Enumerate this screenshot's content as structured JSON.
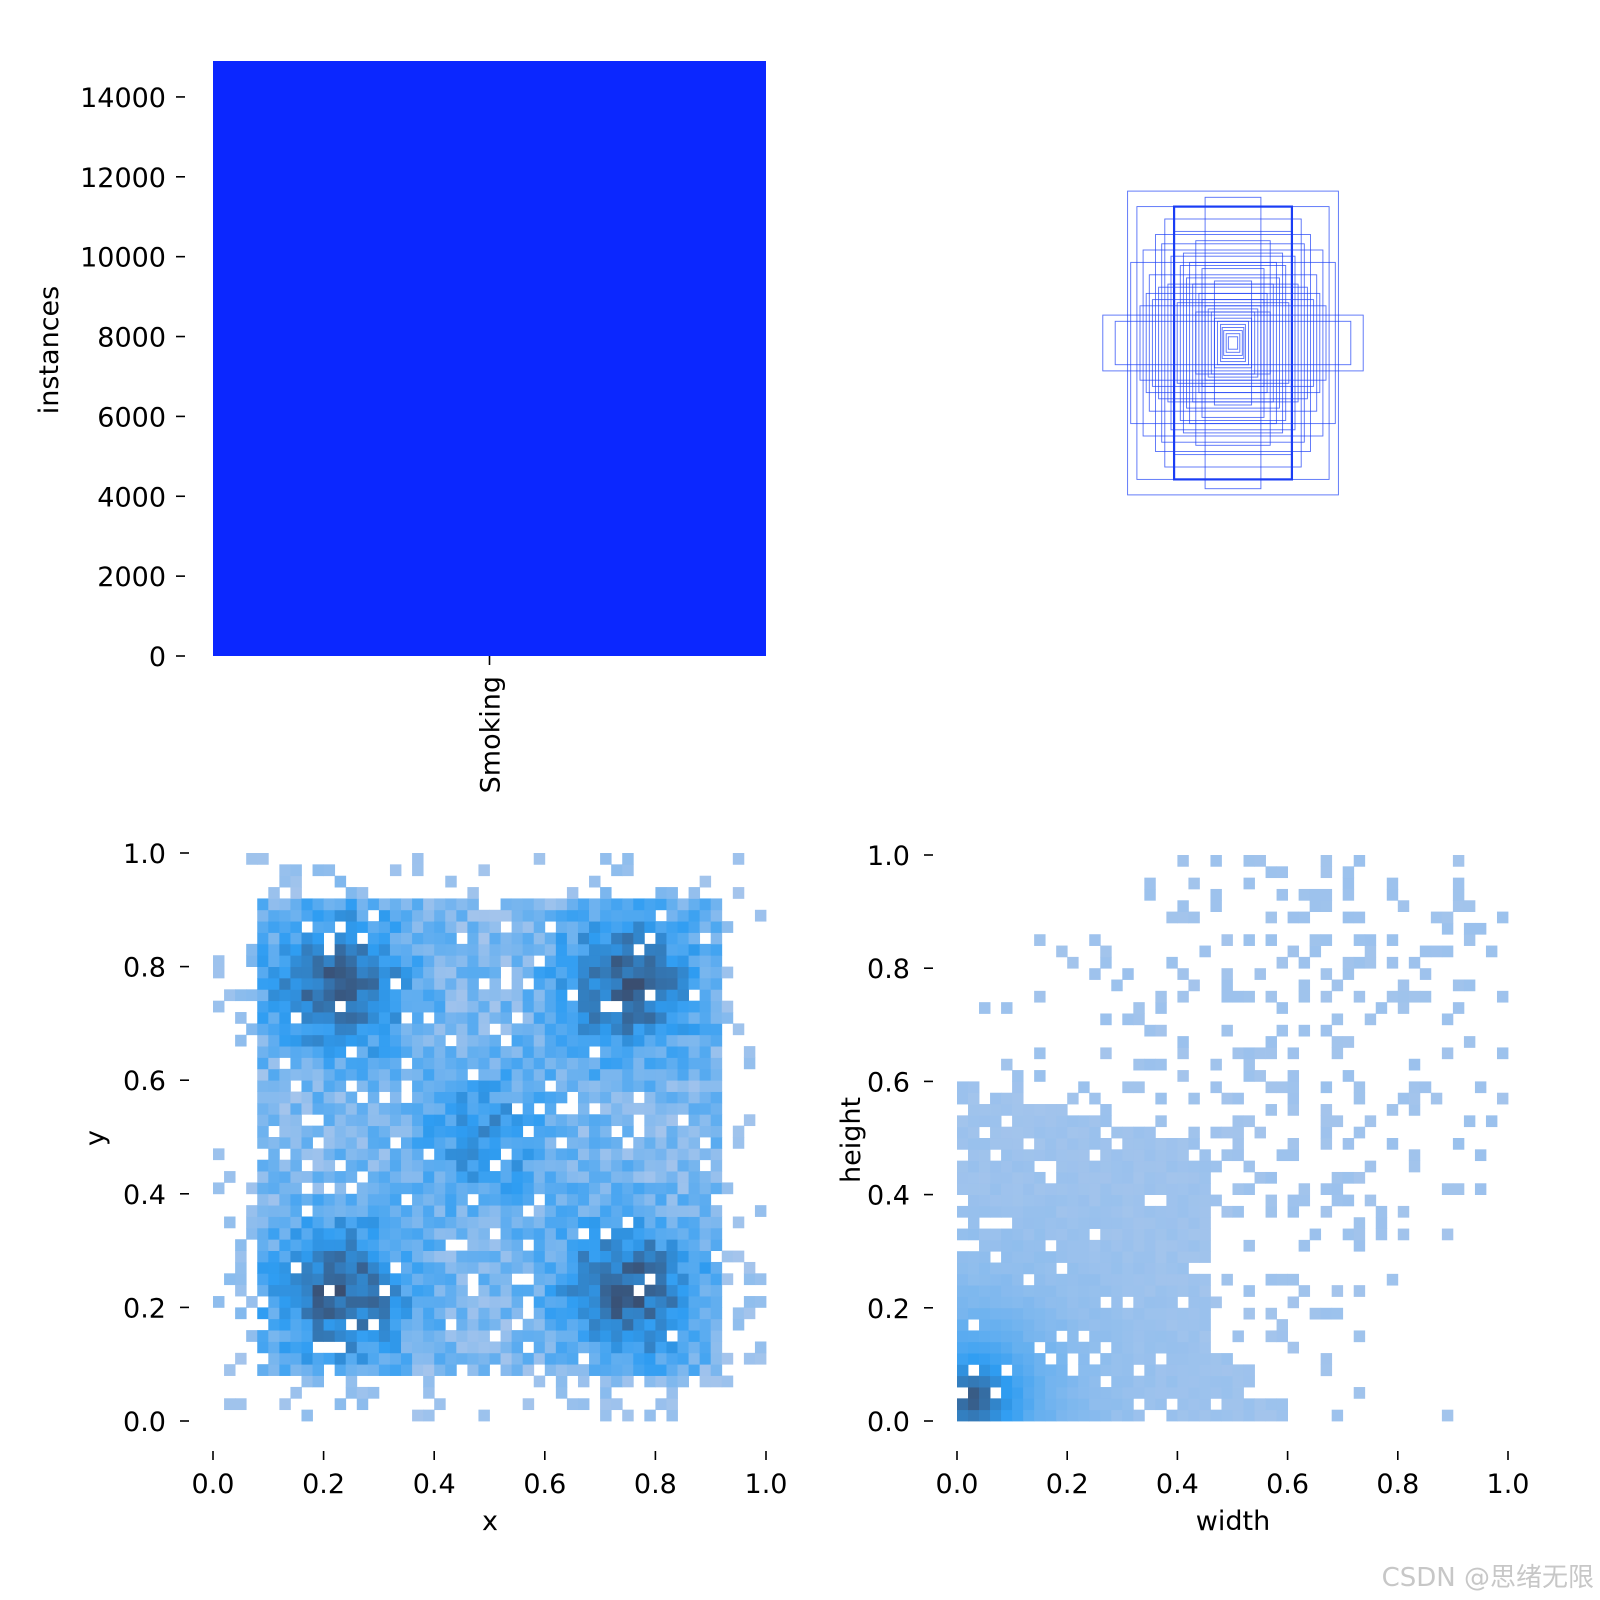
{
  "watermark": "CSDN @思绪无限",
  "colors": {
    "bar": "#0b27ff",
    "box_stroke": "#1a3df5",
    "hist_light": "#a9c6ec",
    "hist_mid": "#2f9df2",
    "hist_dark": "#3a4b6b"
  },
  "chart_data": [
    {
      "type": "bar",
      "categories": [
        "Smoking"
      ],
      "values": [
        14900
      ],
      "xlabel": "",
      "ylabel": "instances",
      "ylim": [
        0,
        14900
      ],
      "yticks": [
        "0",
        "2000",
        "4000",
        "6000",
        "8000",
        "10000",
        "12000",
        "14000"
      ],
      "grid": false
    },
    {
      "type": "other",
      "description": "",
      "boxes_wh": [
        [
          0.34,
          0.49
        ],
        [
          0.31,
          0.44
        ],
        [
          0.25,
          0.35
        ],
        [
          0.23,
          0.32
        ],
        [
          0.2,
          0.28
        ],
        [
          0.17,
          0.25
        ],
        [
          0.15,
          0.21
        ],
        [
          0.13,
          0.19
        ],
        [
          0.11,
          0.16
        ],
        [
          0.1,
          0.14
        ],
        [
          0.09,
          0.12
        ],
        [
          0.08,
          0.11
        ],
        [
          0.07,
          0.1
        ],
        [
          0.06,
          0.08
        ],
        [
          0.05,
          0.07
        ],
        [
          0.04,
          0.06
        ],
        [
          0.035,
          0.05
        ],
        [
          0.03,
          0.04
        ],
        [
          0.022,
          0.03
        ],
        [
          0.015,
          0.02
        ],
        [
          0.42,
          0.09
        ],
        [
          0.38,
          0.07
        ],
        [
          0.28,
          0.16
        ],
        [
          0.26,
          0.14
        ],
        [
          0.21,
          0.19
        ],
        [
          0.19,
          0.36
        ],
        [
          0.12,
          0.33
        ],
        [
          0.09,
          0.47
        ],
        [
          0.29,
          0.3
        ],
        [
          0.22,
          0.4
        ],
        [
          0.16,
          0.29
        ],
        [
          0.14,
          0.26
        ],
        [
          0.27,
          0.22
        ],
        [
          0.12,
          0.1
        ],
        [
          0.06,
          0.2
        ],
        [
          0.3,
          0.12
        ],
        [
          0.18,
          0.13
        ],
        [
          0.1,
          0.24
        ],
        [
          0.24,
          0.18
        ],
        [
          0.33,
          0.26
        ]
      ],
      "emphasized_box_wh": [
        0.21,
        0.44
      ]
    },
    {
      "type": "heatmap",
      "xlabel": "x",
      "ylabel": "y",
      "xlim": [
        0,
        1
      ],
      "ylim": [
        0,
        1
      ],
      "xticks": [
        "0.0",
        "0.2",
        "0.4",
        "0.6",
        "0.8",
        "1.0"
      ],
      "yticks": [
        "0.0",
        "0.2",
        "0.4",
        "0.6",
        "0.8",
        "1.0"
      ],
      "bins": 50,
      "density_centers": [
        [
          0.23,
          0.77
        ],
        [
          0.75,
          0.77
        ],
        [
          0.23,
          0.23
        ],
        [
          0.75,
          0.23
        ],
        [
          0.49,
          0.5
        ]
      ]
    },
    {
      "type": "heatmap",
      "xlabel": "width",
      "ylabel": "height",
      "xlim": [
        0,
        1
      ],
      "ylim": [
        0,
        1
      ],
      "xticks": [
        "0.0",
        "0.2",
        "0.4",
        "0.6",
        "0.8",
        "1.0"
      ],
      "yticks": [
        "0.0",
        "0.2",
        "0.4",
        "0.6",
        "0.8",
        "1.0"
      ],
      "bins": 50,
      "density_peak": [
        0.03,
        0.04
      ]
    }
  ]
}
